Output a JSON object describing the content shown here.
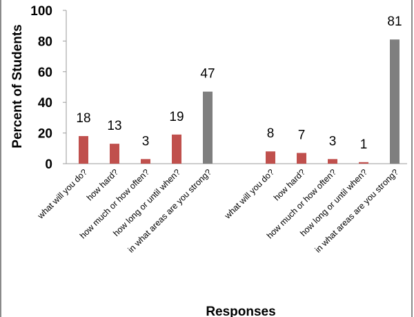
{
  "chart_data": {
    "type": "bar",
    "ylabel": "Percent of Students",
    "xlabel": "Responses",
    "ylim": [
      0,
      100
    ],
    "yticks": [
      0,
      20,
      40,
      60,
      80,
      100
    ],
    "grid": false,
    "colors": {
      "red": "#c0504d",
      "gray": "#7f7f7f"
    },
    "groups": [
      {
        "bars": [
          {
            "category": "what will you do?",
            "value": 18,
            "color": "red"
          },
          {
            "category": "how hard?",
            "value": 13,
            "color": "red"
          },
          {
            "category": "how much or how often?",
            "value": 3,
            "color": "red"
          },
          {
            "category": "how long or until when?",
            "value": 19,
            "color": "red"
          },
          {
            "category": "in what areas are you strong?",
            "value": 47,
            "color": "gray"
          }
        ]
      },
      {
        "bars": [
          {
            "category": "what will you do?",
            "value": 8,
            "color": "red"
          },
          {
            "category": "how hard?",
            "value": 7,
            "color": "red"
          },
          {
            "category": "how much or how often?",
            "value": 3,
            "color": "red"
          },
          {
            "category": "how long or until when?",
            "value": 1,
            "color": "red"
          },
          {
            "category": "in what areas are you strong?",
            "value": 81,
            "color": "gray"
          }
        ]
      }
    ]
  }
}
